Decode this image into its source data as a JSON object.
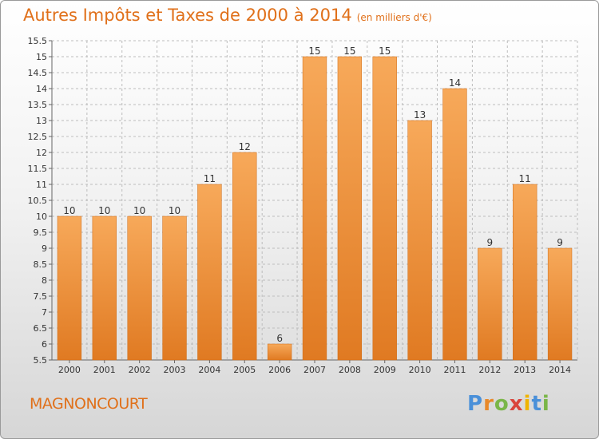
{
  "title": "Autres Impôts et Taxes de 2000 à 2014",
  "unit": "(en milliers d'€)",
  "commune": "MAGNONCOURT",
  "logo_text": "Proxiti",
  "colors": {
    "bar_light": "#f7a95a",
    "bar_dark": "#e07a22",
    "accent": "#e0701a",
    "grid": "#bdbdbd",
    "axis_text": "#333333"
  },
  "chart_data": {
    "type": "bar",
    "title": "Autres Impôts et Taxes de 2000 à 2014",
    "subtitle": "(en milliers d'€)",
    "xlabel": "",
    "ylabel": "",
    "categories": [
      "2000",
      "2001",
      "2002",
      "2003",
      "2004",
      "2005",
      "2006",
      "2007",
      "2008",
      "2009",
      "2010",
      "2011",
      "2012",
      "2013",
      "2014"
    ],
    "values": [
      10,
      10,
      10,
      10,
      11,
      12,
      6,
      15,
      15,
      15,
      13,
      14,
      9,
      11,
      9
    ],
    "data_labels": [
      "10",
      "10",
      "10",
      "10",
      "11",
      "12",
      "6",
      "15",
      "15",
      "15",
      "13",
      "14",
      "9",
      "11",
      "9"
    ],
    "ylim": [
      5.5,
      15.5
    ],
    "yticks": [
      5.5,
      6,
      6.5,
      7,
      7.5,
      8,
      8.5,
      9,
      9.5,
      10,
      10.5,
      11,
      11.5,
      12,
      12.5,
      13,
      13.5,
      14,
      14.5,
      15,
      15.5
    ],
    "ytick_labels": [
      "5.5",
      "6",
      "6.5",
      "7",
      "7.5",
      "8",
      "8.5",
      "9",
      "9.5",
      "10",
      "10.5",
      "11",
      "11.5",
      "12",
      "12.5",
      "13",
      "13.5",
      "14",
      "14.5",
      "15",
      "15.5"
    ],
    "grid": true,
    "legend": "none"
  }
}
